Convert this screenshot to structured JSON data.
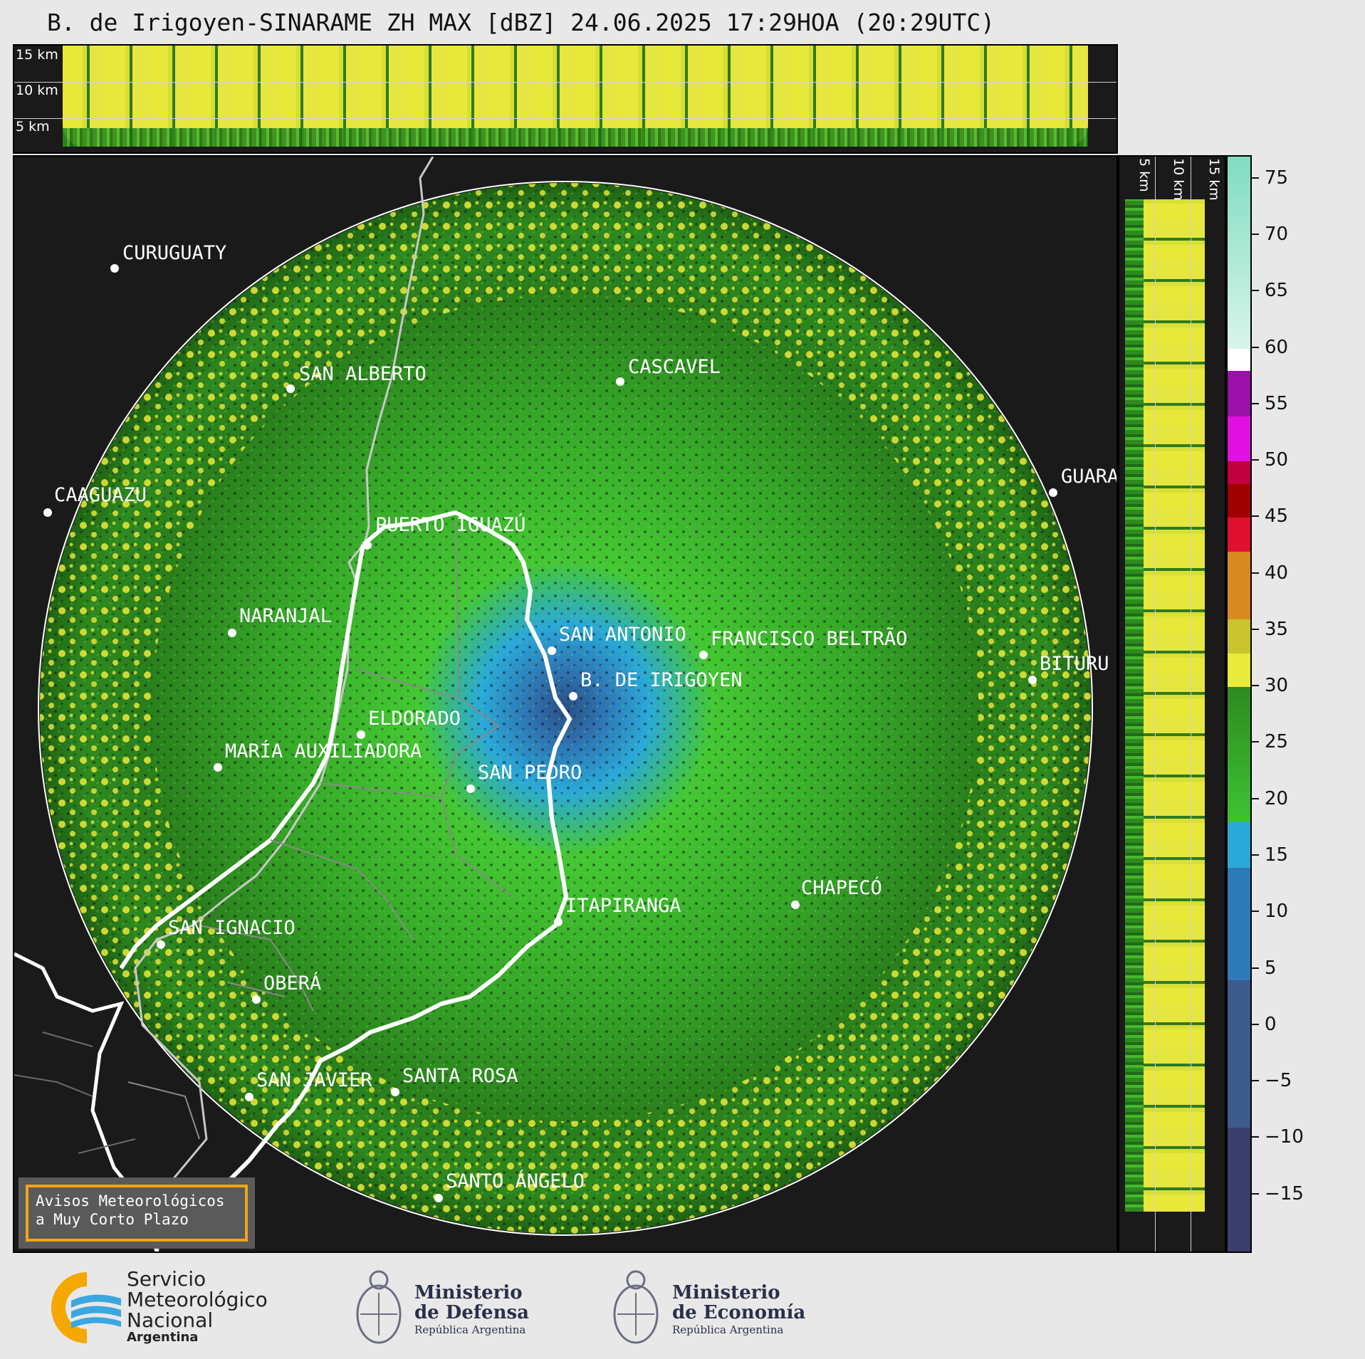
{
  "title": "B. de Irigoyen-SINARAME ZH MAX [dBZ] 24.06.2025 17:29HOA (20:29UTC)",
  "top_strip": {
    "labels": [
      "15 km",
      "10 km",
      "5 km"
    ]
  },
  "right_strip": {
    "labels": [
      "5 km",
      "10 km",
      "15 km"
    ]
  },
  "colorbar": {
    "ticks": [
      "75",
      "70",
      "65",
      "60",
      "55",
      "50",
      "45",
      "40",
      "35",
      "30",
      "25",
      "20",
      "15",
      "10",
      "5",
      "0",
      "−5",
      "−10",
      "−15"
    ],
    "colors": {
      "mint": "#7fdcc0",
      "white": "#ffffff",
      "purple": "#9b10a8",
      "magenta": "#e010e0",
      "crimson": "#c00040",
      "darkred": "#a00000",
      "red": "#e01030",
      "orange": "#d88a20",
      "olive": "#c9c32e",
      "yellow": "#eaea3a",
      "green": "#2e8a1f",
      "lightgreen": "#3ec234",
      "skyblue": "#2aa9d9",
      "blue": "#2e7ab8",
      "slate": "#3c5a8c",
      "navy": "#3a3f6e"
    }
  },
  "cities": [
    {
      "name": "CURUGUATY"
    },
    {
      "name": "SAN ALBERTO"
    },
    {
      "name": "CASCAVEL"
    },
    {
      "name": "CAAGUAZU"
    },
    {
      "name": "GUARA"
    },
    {
      "name": "PUERTO IGUAZÚ"
    },
    {
      "name": "NARANJAL"
    },
    {
      "name": "SAN ANTONIO"
    },
    {
      "name": "FRANCISCO BELTRÃO"
    },
    {
      "name": "BITURU"
    },
    {
      "name": "B. DE IRIGOYEN"
    },
    {
      "name": "ELDORADO"
    },
    {
      "name": "MARÍA AUXILIADORA"
    },
    {
      "name": "SAN PEDRO"
    },
    {
      "name": "CHAPECÓ"
    },
    {
      "name": "ITAPIRANGA"
    },
    {
      "name": "SAN IGNACIO"
    },
    {
      "name": "OBERÁ"
    },
    {
      "name": "SAN JAVIER"
    },
    {
      "name": "SANTA ROSA"
    },
    {
      "name": "SANTO ÁNGELO"
    }
  ],
  "notice": {
    "line1": "Avisos Meteorológicos",
    "line2": "a Muy Corto Plazo"
  },
  "footer": {
    "smn": {
      "line1": "Servicio",
      "line2": "Meteorológico",
      "line3": "Nacional",
      "sub": "Argentina"
    },
    "defensa": {
      "line1": "Ministerio",
      "line2": "de Defensa",
      "sub": "República Argentina"
    },
    "economia": {
      "line1": "Ministerio",
      "line2": "de Economía",
      "sub": "República Argentina"
    }
  }
}
